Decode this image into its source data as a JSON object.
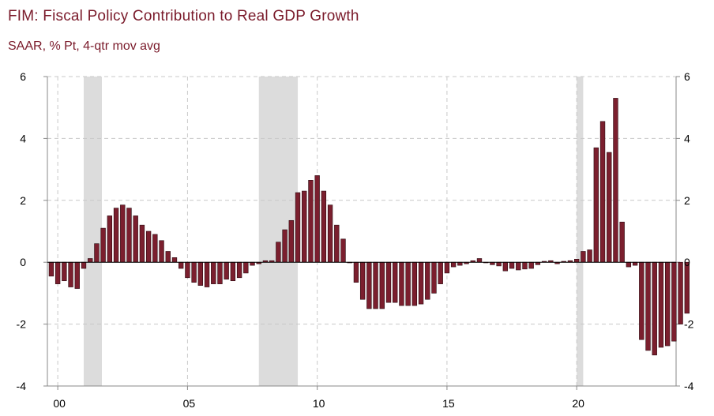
{
  "header": {
    "title": "FIM: Fiscal Policy Contribution to Real GDP Growth",
    "subtitle": "SAAR, % Pt, 4-qtr mov avg"
  },
  "colors": {
    "bar_fill": "#7b1f2e",
    "bar_edge": "#2a0a10",
    "recession_shade": "#dcdcdc",
    "grid": "#c8c8c8",
    "title": "#7a1a2a"
  },
  "chart_data": {
    "type": "bar",
    "title": "FIM: Fiscal Policy Contribution to Real GDP Growth",
    "subtitle": "SAAR, % Pt, 4-qtr mov avg",
    "ylim": [
      -4,
      6
    ],
    "y_ticks": [
      -4,
      -2,
      0,
      2,
      4,
      6
    ],
    "y_tick_labels_left": [
      "-4",
      "-2",
      "0",
      "2",
      "4",
      "6"
    ],
    "y_tick_labels_right": [
      "-4",
      "-2",
      "0",
      "2",
      "4",
      "6"
    ],
    "x_tick_labels": [
      "00",
      "05",
      "10",
      "15",
      "20"
    ],
    "x_tick_years": [
      2000,
      2005,
      2010,
      2015,
      2020
    ],
    "x_start": 1999.6,
    "x_end": 2023.83,
    "grid": true,
    "recessions": [
      [
        2001.0,
        2001.7
      ],
      [
        2007.75,
        2009.25
      ],
      [
        2020.0,
        2020.25
      ]
    ],
    "series": [
      {
        "start_year": 1999.75,
        "step_years": 0.25,
        "values": [
          -0.45,
          -0.7,
          -0.6,
          -0.8,
          -0.85,
          -0.2,
          0.12,
          0.6,
          1.1,
          1.5,
          1.75,
          1.85,
          1.75,
          1.5,
          1.2,
          1.0,
          0.9,
          0.7,
          0.35,
          0.15,
          -0.2,
          -0.5,
          -0.65,
          -0.75,
          -0.8,
          -0.7,
          -0.7,
          -0.55,
          -0.6,
          -0.5,
          -0.35,
          -0.1,
          -0.05,
          0.05,
          0.05,
          0.65,
          1.05,
          1.35,
          2.25,
          2.3,
          2.65,
          2.8,
          2.3,
          1.85,
          1.2,
          0.75,
          0.0,
          -0.65,
          -1.2,
          -1.5,
          -1.5,
          -1.5,
          -1.3,
          -1.3,
          -1.4,
          -1.4,
          -1.4,
          -1.35,
          -1.2,
          -1.0,
          -0.7,
          -0.35,
          -0.15,
          -0.1,
          -0.05,
          0.05,
          0.12,
          0.0,
          -0.08,
          -0.12,
          -0.28,
          -0.2,
          -0.25,
          -0.22,
          -0.2,
          -0.08,
          0.03,
          0.05,
          -0.05,
          0.03,
          0.05,
          0.1,
          0.35,
          0.4,
          3.7,
          4.55,
          3.55,
          5.3,
          1.3,
          -0.15,
          -0.1,
          -2.5,
          -2.85,
          -3.0,
          -2.75,
          -2.7,
          -2.55,
          -2.0,
          -1.65
        ]
      }
    ]
  }
}
